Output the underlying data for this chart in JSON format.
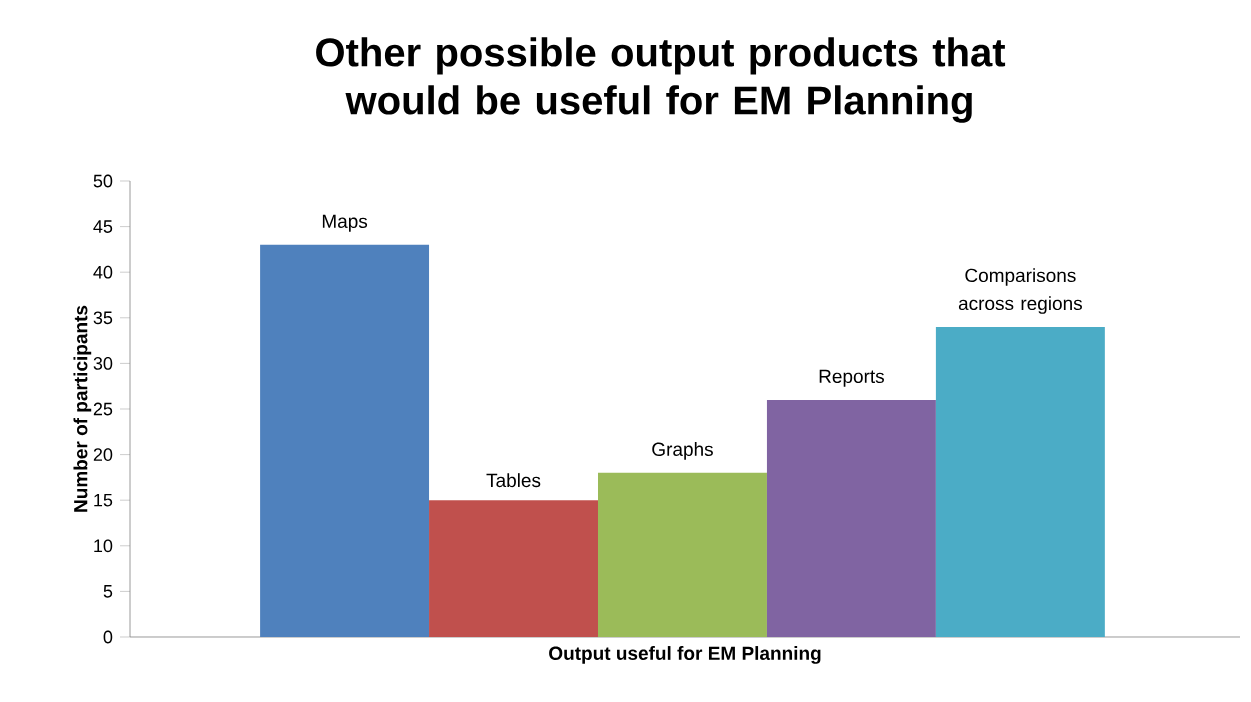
{
  "chart_data": {
    "type": "bar",
    "title": "Other possible output products that would be useful for EM Planning",
    "xlabel": "Output useful for EM Planning",
    "ylabel": "Number of participants",
    "categories": [
      "Maps",
      "Tables",
      "Graphs",
      "Reports",
      "Comparisons across regions"
    ],
    "values": [
      43,
      15,
      18,
      26,
      34
    ],
    "colors": [
      "#4f81bd",
      "#c0504d",
      "#9bbb59",
      "#8064a2",
      "#4bacc6"
    ],
    "ylim": [
      0,
      50
    ],
    "yticks": [
      0,
      5,
      10,
      15,
      20,
      25,
      30,
      35,
      40,
      45,
      50
    ],
    "grid": false
  }
}
